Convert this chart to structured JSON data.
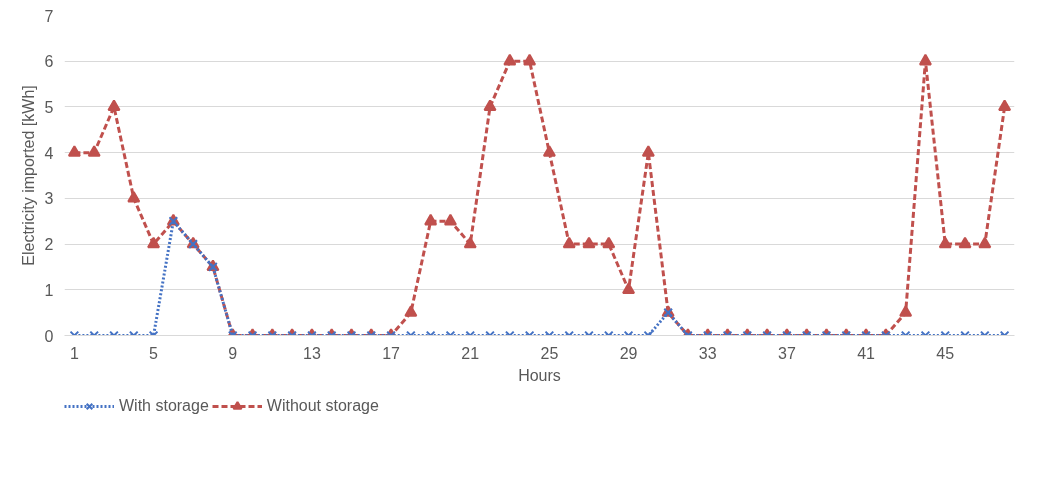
{
  "chart_data": {
    "type": "line",
    "xlabel": "Hours",
    "ylabel": "Electricity imported [kWh]",
    "x": [
      1,
      2,
      3,
      4,
      5,
      6,
      7,
      8,
      9,
      10,
      11,
      12,
      13,
      14,
      15,
      16,
      17,
      18,
      19,
      20,
      21,
      22,
      23,
      24,
      25,
      26,
      27,
      28,
      29,
      30,
      31,
      32,
      33,
      34,
      35,
      36,
      37,
      38,
      39,
      40,
      41,
      42,
      43,
      44,
      45,
      46,
      47,
      48
    ],
    "xlim": [
      0.5,
      48.5
    ],
    "xticks": [
      1,
      5,
      9,
      13,
      17,
      21,
      25,
      29,
      33,
      37,
      41,
      45
    ],
    "ylim": [
      0,
      7
    ],
    "yticks": [
      0,
      1,
      2,
      3,
      4,
      5,
      6,
      7
    ],
    "grid": "y",
    "legend": "bottom",
    "series": [
      {
        "name": "With storage",
        "color": "#4472c4",
        "marker": "cross",
        "line_style": "dotted",
        "values": [
          0,
          0,
          0,
          0,
          0,
          2.5,
          2,
          1.5,
          0,
          0,
          0,
          0,
          0,
          0,
          0,
          0,
          0,
          0,
          0,
          0,
          0,
          0,
          0,
          0,
          0,
          0,
          0,
          0,
          0,
          0,
          0.5,
          0,
          0,
          0,
          0,
          0,
          0,
          0,
          0,
          0,
          0,
          0,
          0,
          0,
          0,
          0,
          0,
          0
        ]
      },
      {
        "name": "Without storage",
        "color": "#c0504d",
        "marker": "triangle",
        "line_style": "dashed",
        "values": [
          4,
          4,
          5,
          3,
          2,
          2.5,
          2,
          1.5,
          0,
          0,
          0,
          0,
          0,
          0,
          0,
          0,
          0,
          0.5,
          2.5,
          2.5,
          2,
          5,
          6,
          6,
          4,
          2,
          2,
          2,
          1,
          4,
          0.5,
          0,
          0,
          0,
          0,
          0,
          0,
          0,
          0,
          0,
          0,
          0,
          0.5,
          6,
          2,
          2,
          2,
          5
        ]
      }
    ]
  }
}
